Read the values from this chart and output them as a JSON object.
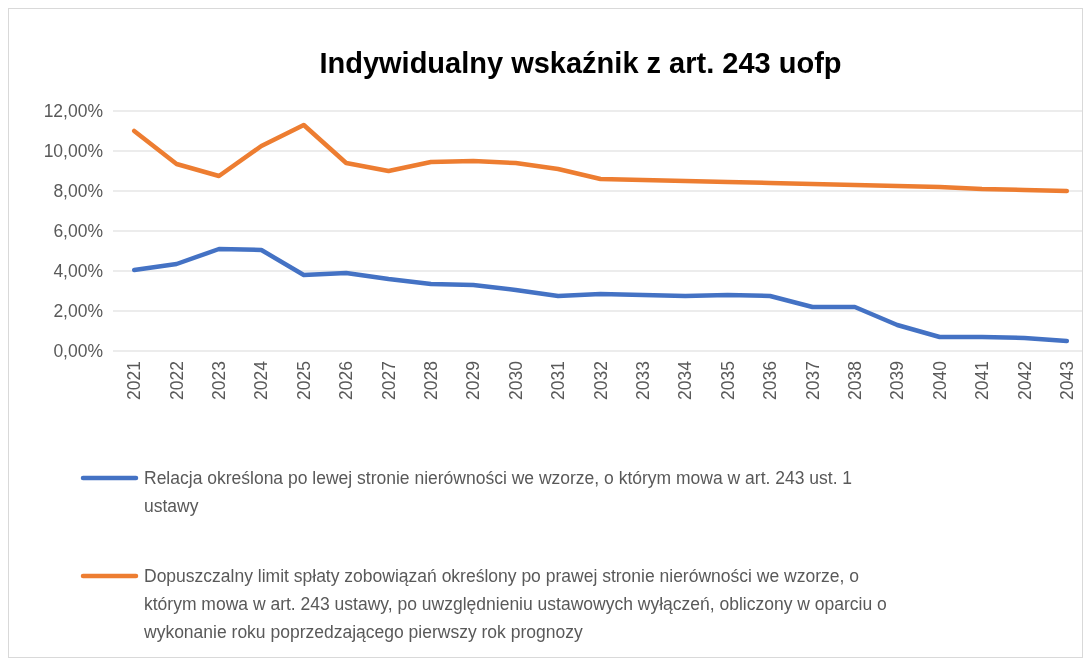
{
  "chart_data": {
    "type": "line",
    "title": "Indywidualny wskaźnik z art. 243 uofp",
    "categories": [
      "2021",
      "2022",
      "2023",
      "2024",
      "2025",
      "2026",
      "2027",
      "2028",
      "2029",
      "2030",
      "2031",
      "2032",
      "2033",
      "2034",
      "2035",
      "2036",
      "2037",
      "2038",
      "2039",
      "2040",
      "2041",
      "2042",
      "2043"
    ],
    "series": [
      {
        "name": "Relacja określona po lewej stronie nierówności we wzorze, o którym mowa w art. 243 ust. 1 ustawy",
        "color": "#4472c4",
        "values": [
          4.05,
          4.35,
          5.1,
          5.05,
          3.8,
          3.9,
          3.6,
          3.35,
          3.3,
          3.05,
          2.75,
          2.85,
          2.8,
          2.75,
          2.8,
          2.75,
          2.2,
          2.2,
          1.3,
          0.7,
          0.7,
          0.65,
          0.5
        ]
      },
      {
        "name": "Dopuszczalny limit spłaty zobowiązań określony po prawej stronie nierówności we wzorze, o którym mowa w art. 243 ustawy, po uwzględnieniu ustawowych wyłączeń, obliczony w oparciu o wykonanie roku poprzedzającego pierwszy rok prognozy",
        "color": "#ed7d31",
        "values": [
          11.0,
          9.35,
          8.75,
          10.25,
          11.3,
          9.4,
          9.0,
          9.45,
          9.5,
          9.4,
          9.1,
          8.6,
          8.55,
          8.5,
          8.45,
          8.4,
          8.35,
          8.3,
          8.25,
          8.2,
          8.1,
          8.05,
          8.0
        ]
      }
    ],
    "ylim": [
      0,
      12
    ],
    "yticks": [
      {
        "value": 0,
        "label": "0,00%"
      },
      {
        "value": 2,
        "label": "2,00%"
      },
      {
        "value": 4,
        "label": "4,00%"
      },
      {
        "value": 6,
        "label": "6,00%"
      },
      {
        "value": 8,
        "label": "8,00%"
      },
      {
        "value": 10,
        "label": "10,00%"
      },
      {
        "value": 12,
        "label": "12,00%"
      }
    ],
    "grid": "y",
    "legend": "bottom",
    "marker": "none",
    "line_style": "solid"
  }
}
